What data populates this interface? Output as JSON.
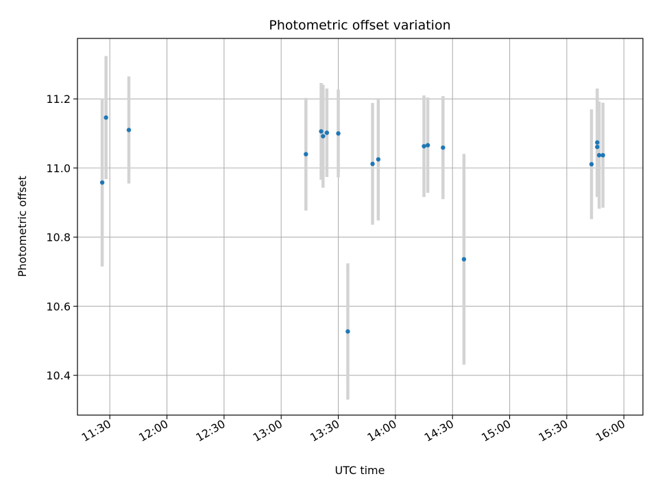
{
  "chart_data": {
    "type": "scatter",
    "title": "Photometric offset variation",
    "xlabel": "UTC time",
    "ylabel": "Photometric offset",
    "x_axis_type": "time",
    "xlim": [
      "11:13",
      "16:10"
    ],
    "ylim": [
      10.285,
      11.375
    ],
    "grid": true,
    "x_ticks": [
      {
        "value": "11:30",
        "label": "11:30"
      },
      {
        "value": "12:00",
        "label": "12:00"
      },
      {
        "value": "12:30",
        "label": "12:30"
      },
      {
        "value": "13:00",
        "label": "13:00"
      },
      {
        "value": "13:30",
        "label": "13:30"
      },
      {
        "value": "14:00",
        "label": "14:00"
      },
      {
        "value": "14:30",
        "label": "14:30"
      },
      {
        "value": "15:00",
        "label": "15:00"
      },
      {
        "value": "15:30",
        "label": "15:30"
      },
      {
        "value": "16:00",
        "label": "16:00"
      }
    ],
    "y_ticks": [
      {
        "value": 10.4,
        "label": "10.4"
      },
      {
        "value": 10.6,
        "label": "10.6"
      },
      {
        "value": 10.8,
        "label": "10.8"
      },
      {
        "value": 11.0,
        "label": "11.0"
      },
      {
        "value": 11.2,
        "label": "11.2"
      }
    ],
    "colors": {
      "point": "#1f77b4",
      "errorbar": "#d3d3d3",
      "grid": "#b0b0b0"
    },
    "points": [
      {
        "x": "11:26",
        "y": 10.958,
        "err": 0.243
      },
      {
        "x": "11:28",
        "y": 11.146,
        "err": 0.178
      },
      {
        "x": "11:40",
        "y": 11.11,
        "err": 0.155
      },
      {
        "x": "13:13",
        "y": 11.04,
        "err": 0.163
      },
      {
        "x": "13:21",
        "y": 11.106,
        "err": 0.14
      },
      {
        "x": "13:22",
        "y": 11.092,
        "err": 0.149
      },
      {
        "x": "13:24",
        "y": 11.102,
        "err": 0.128
      },
      {
        "x": "13:30",
        "y": 11.1,
        "err": 0.127
      },
      {
        "x": "13:35",
        "y": 10.527,
        "err": 0.197
      },
      {
        "x": "13:48",
        "y": 11.012,
        "err": 0.176
      },
      {
        "x": "13:51",
        "y": 11.025,
        "err": 0.177
      },
      {
        "x": "14:15",
        "y": 11.063,
        "err": 0.147
      },
      {
        "x": "14:17",
        "y": 11.066,
        "err": 0.138
      },
      {
        "x": "14:25",
        "y": 11.059,
        "err": 0.149
      },
      {
        "x": "14:36",
        "y": 10.736,
        "err": 0.305
      },
      {
        "x": "15:43",
        "y": 11.011,
        "err": 0.159
      },
      {
        "x": "15:46",
        "y": 11.074,
        "err": 0.156
      },
      {
        "x": "15:46",
        "y": 11.061,
        "err": 0.145
      },
      {
        "x": "15:47",
        "y": 11.037,
        "err": 0.155
      },
      {
        "x": "15:49",
        "y": 11.037,
        "err": 0.152
      }
    ]
  }
}
